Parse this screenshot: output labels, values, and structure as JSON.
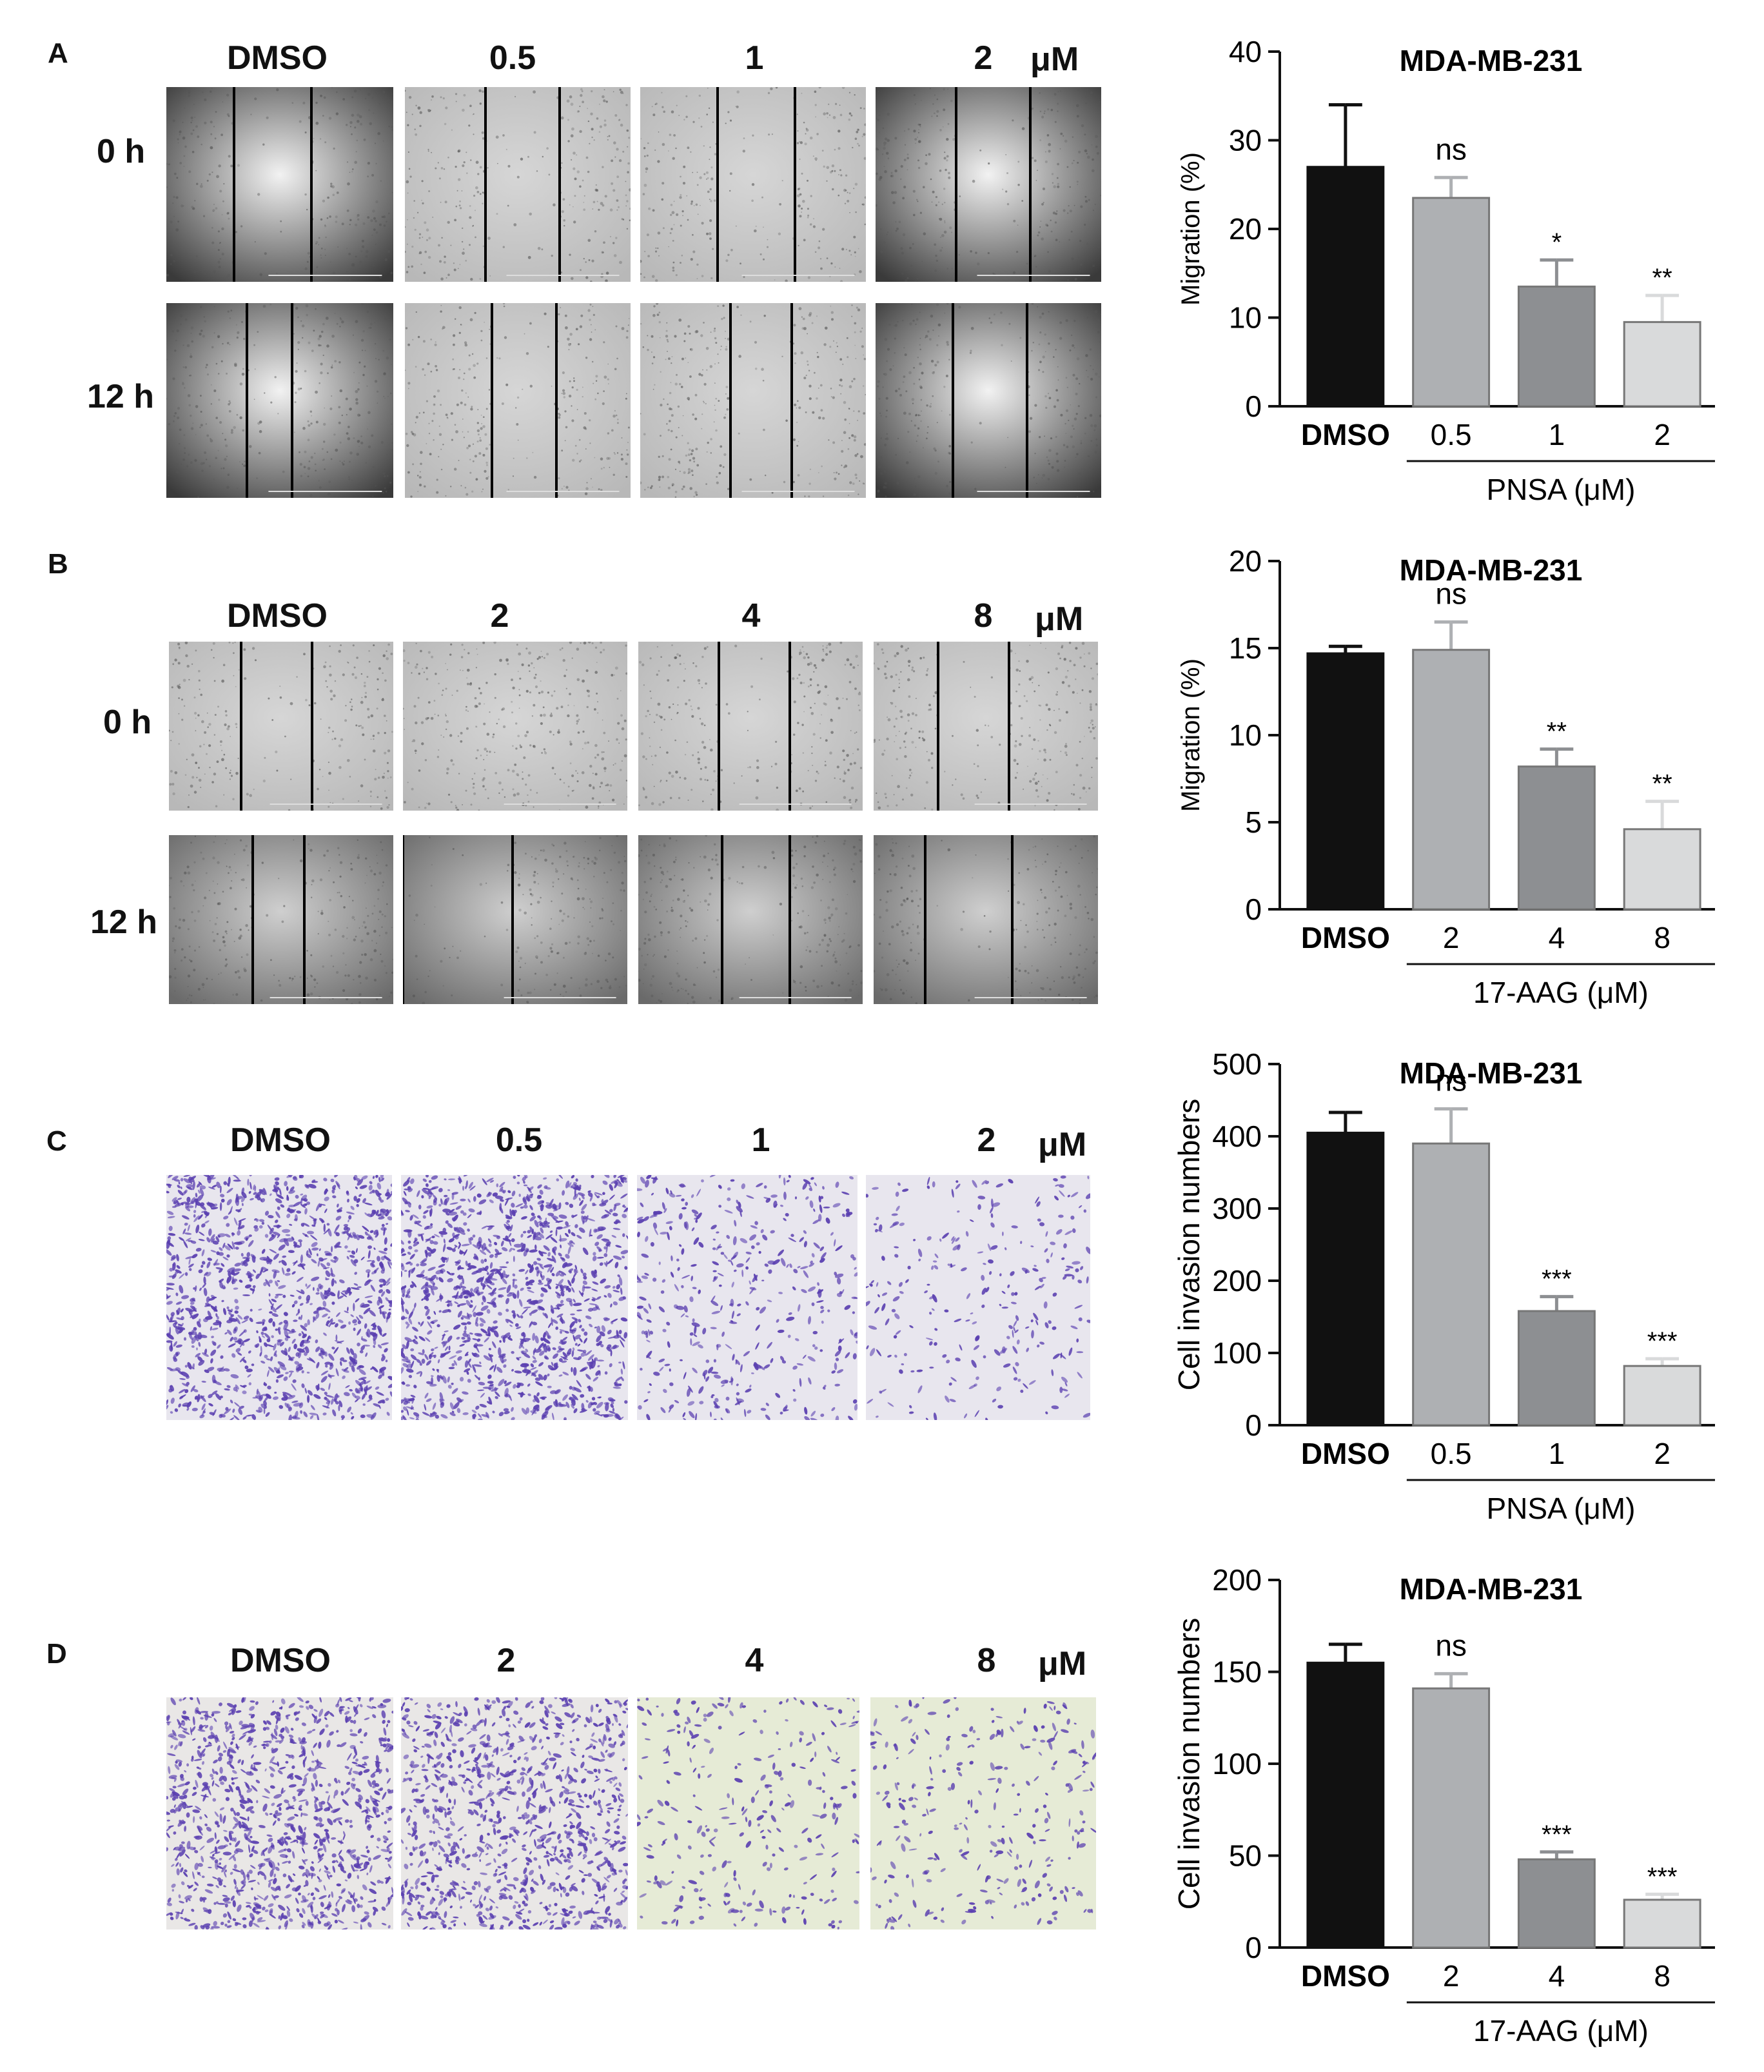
{
  "figure": {
    "panels": [
      {
        "letter": "A",
        "type": "wound",
        "concentrations": [
          "DMSO",
          "0.5",
          "1",
          "2"
        ],
        "unit": "μM",
        "time_labels": [
          "0 h",
          "12 h"
        ]
      },
      {
        "letter": "B",
        "type": "wound",
        "concentrations": [
          "DMSO",
          "2",
          "4",
          "8"
        ],
        "unit": "μM",
        "time_labels": [
          "0 h",
          "12 h"
        ]
      },
      {
        "letter": "C",
        "type": "transwell",
        "concentrations": [
          "DMSO",
          "0.5",
          "1",
          "2"
        ],
        "unit": "μM"
      },
      {
        "letter": "D",
        "type": "transwell",
        "concentrations": [
          "DMSO",
          "2",
          "4",
          "8"
        ],
        "unit": "μM"
      }
    ]
  },
  "chart_data": [
    {
      "type": "bar",
      "title": "MDA-MB-231",
      "ylabel": "Migration (%)",
      "categories": [
        "DMSO",
        "0.5",
        "1",
        "2"
      ],
      "group_label": "PNSA (μM)",
      "values": [
        27,
        23.5,
        13.5,
        9.5
      ],
      "errors": [
        7,
        2.3,
        3,
        3
      ],
      "significance": [
        "",
        "ns",
        "*",
        "**"
      ],
      "ylim": [
        0,
        40
      ],
      "yticks": [
        0,
        10,
        20,
        30,
        40
      ],
      "colors": [
        "#111111",
        "#aeb0b3",
        "#8d8f92",
        "#d9dadb"
      ]
    },
    {
      "type": "bar",
      "title": "MDA-MB-231",
      "ylabel": "Migration (%)",
      "categories": [
        "DMSO",
        "2",
        "4",
        "8"
      ],
      "group_label": "17-AAG (μM)",
      "values": [
        14.7,
        14.9,
        8.2,
        4.6
      ],
      "errors": [
        0.4,
        1.6,
        1.0,
        1.6
      ],
      "significance": [
        "",
        "ns",
        "**",
        "**"
      ],
      "ylim": [
        0,
        20
      ],
      "yticks": [
        0,
        5,
        10,
        15,
        20
      ],
      "colors": [
        "#111111",
        "#aeb0b3",
        "#8d8f92",
        "#d9dadb"
      ]
    },
    {
      "type": "bar",
      "title": "MDA-MB-231",
      "ylabel": "Cell invasion numbers",
      "categories": [
        "DMSO",
        "0.5",
        "1",
        "2"
      ],
      "group_label": "PNSA (μM)",
      "values": [
        405,
        390,
        158,
        82
      ],
      "errors": [
        28,
        48,
        20,
        10
      ],
      "significance": [
        "",
        "ns",
        "***",
        "***"
      ],
      "ylim": [
        0,
        500
      ],
      "yticks": [
        0,
        100,
        200,
        300,
        400,
        500
      ],
      "colors": [
        "#111111",
        "#aeb0b3",
        "#8d8f92",
        "#d9dadb"
      ]
    },
    {
      "type": "bar",
      "title": "MDA-MB-231",
      "ylabel": "Cell invasion numbers",
      "categories": [
        "DMSO",
        "2",
        "4",
        "8"
      ],
      "group_label": "17-AAG (μM)",
      "values": [
        155,
        141,
        48,
        26
      ],
      "errors": [
        10,
        8,
        4,
        3
      ],
      "significance": [
        "",
        "ns",
        "***",
        "***"
      ],
      "ylim": [
        0,
        200
      ],
      "yticks": [
        0,
        50,
        100,
        150,
        200
      ],
      "colors": [
        "#111111",
        "#aeb0b3",
        "#8d8f92",
        "#d9dadb"
      ]
    }
  ]
}
